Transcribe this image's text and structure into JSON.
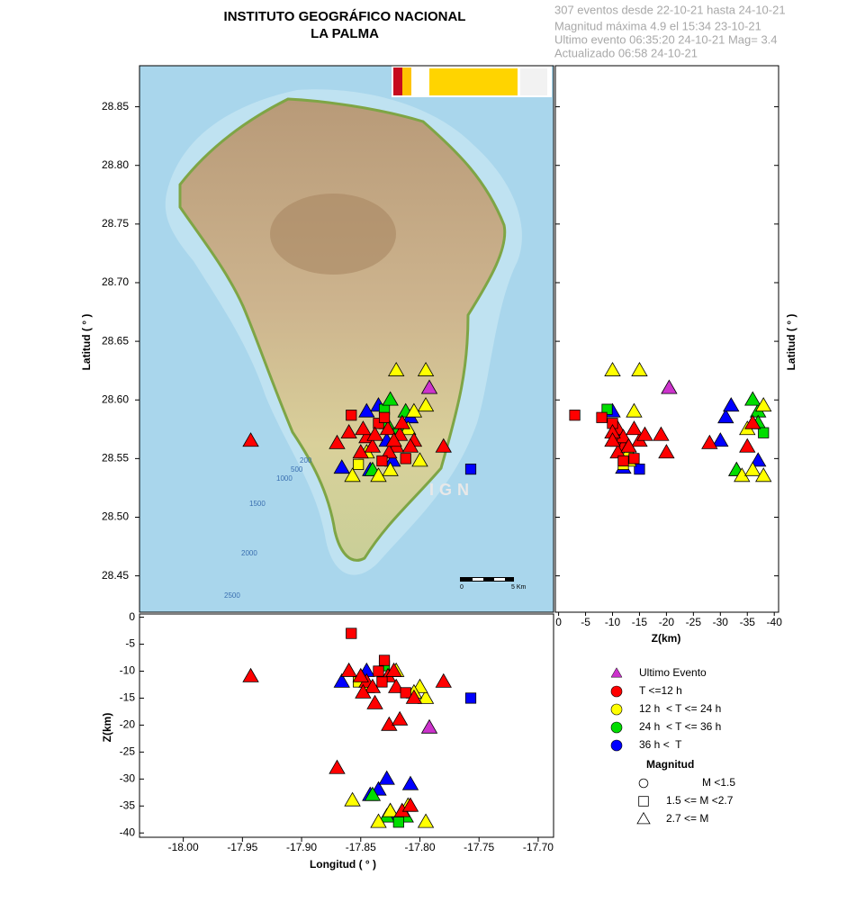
{
  "chart_data": {
    "type": "seismic-map",
    "title": [
      "INSTITUTO GEOGRÁFICO NACIONAL",
      "LA PALMA"
    ],
    "info": [
      "307 eventos desde 22-10-21 hasta 24-10-21",
      "Magnitud máxima 4.9 el 15:34 23-10-21",
      "Ultimo evento  06:35:20 24-10-21  Mag= 3.4",
      "Actualizado  06:58  24-10-21"
    ],
    "xlabel": "Longitud ( ° )",
    "ylabel": "Latitud ( ° )",
    "zlabel": "Z(km)",
    "xlim": [
      -18.037,
      -17.687
    ],
    "ylim": [
      28.419,
      28.885
    ],
    "zlim": [
      0.6,
      -40.8
    ],
    "xticks": [
      {
        "value": -18.0,
        "label": "-18.00"
      },
      {
        "value": -17.95,
        "label": "-17.95"
      },
      {
        "value": -17.9,
        "label": "-17.90"
      },
      {
        "value": -17.85,
        "label": "-17.85"
      },
      {
        "value": -17.8,
        "label": "-17.80"
      },
      {
        "value": -17.75,
        "label": "-17.75"
      },
      {
        "value": -17.7,
        "label": "-17.70"
      }
    ],
    "yticks": [
      28.45,
      {
        "value": 28.5,
        "label": "28.50"
      },
      28.55,
      {
        "value": 28.6,
        "label": "28.60"
      },
      28.65,
      {
        "value": 28.7,
        "label": "28.70"
      },
      28.75,
      {
        "value": 28.8,
        "label": "28.80"
      },
      28.85
    ],
    "zticks": [
      0,
      -5,
      -10,
      -15,
      -20,
      -25,
      -30,
      -35,
      -40
    ],
    "map_labels": {
      "contours": [
        "200",
        "500",
        "1000",
        "1500",
        "2000",
        "2500"
      ],
      "watermark": "IGN",
      "scale": [
        "0",
        "5 Km"
      ]
    },
    "series": [
      {
        "name": "Ultimo Evento",
        "color": "#cc33cc",
        "lon": [
          -17.792
        ],
        "lat": [
          28.61
        ],
        "depth": [
          -20.5
        ],
        "markers": [
          "triangle"
        ]
      },
      {
        "name": "T <=12 h",
        "color": "#ff0000",
        "lon": [
          -17.943,
          -17.858,
          -17.87,
          -17.78,
          -17.827,
          -17.835,
          -17.845,
          -17.82,
          -17.812,
          -17.85,
          -17.83,
          -17.805,
          -17.826,
          -17.817,
          -17.84,
          -17.86,
          -17.815,
          -17.808,
          -17.832,
          -17.848,
          -17.822,
          -17.838
        ],
        "lat": [
          28.565,
          28.587,
          28.563,
          28.56,
          28.575,
          28.58,
          28.568,
          28.56,
          28.55,
          28.555,
          28.585,
          28.565,
          28.555,
          28.57,
          28.56,
          28.572,
          28.58,
          28.56,
          28.548,
          28.575,
          28.565,
          28.57
        ],
        "depth": [
          -11,
          -3,
          -28,
          -12,
          -11,
          -10,
          -12,
          -13,
          -14,
          -11,
          -8,
          -15,
          -20,
          -19,
          -13,
          -10,
          -36,
          -35,
          -12,
          -14,
          -10,
          -16
        ],
        "markers": [
          "triangle",
          "square",
          "triangle",
          "triangle",
          "triangle",
          "square",
          "triangle",
          "triangle",
          "square",
          "triangle",
          "square",
          "triangle",
          "triangle",
          "triangle",
          "triangle",
          "triangle",
          "triangle",
          "triangle",
          "square",
          "triangle",
          "triangle",
          "triangle"
        ]
      },
      {
        "name": "12 h  < T <= 24 h",
        "color": "#ffff00",
        "lon": [
          -17.795,
          -17.82,
          -17.795,
          -17.8,
          -17.857,
          -17.825,
          -17.845,
          -17.81,
          -17.835,
          -17.805,
          -17.852
        ],
        "lat": [
          28.625,
          28.625,
          28.595,
          28.548,
          28.535,
          28.54,
          28.555,
          28.575,
          28.535,
          28.59,
          28.545
        ],
        "depth": [
          -15,
          -10,
          -38,
          -13,
          -34,
          -36,
          -13,
          -35,
          -38,
          -14,
          -12
        ],
        "markers": [
          "triangle",
          "triangle",
          "triangle",
          "triangle",
          "triangle",
          "triangle",
          "triangle",
          "triangle",
          "triangle",
          "triangle",
          "square"
        ]
      },
      {
        "name": "24 h  < T <= 36 h",
        "color": "#00dd00",
        "lon": [
          -17.83,
          -17.812,
          -17.825,
          -17.84,
          -17.828,
          -17.818
        ],
        "lat": [
          28.592,
          28.59,
          28.6,
          28.54,
          28.58,
          28.572
        ],
        "depth": [
          -9,
          -37,
          -36,
          -33,
          -37,
          -38
        ],
        "markers": [
          "square",
          "triangle",
          "triangle",
          "triangle",
          "triangle",
          "square"
        ]
      },
      {
        "name": "36 h <  T",
        "color": "#0000ff",
        "lon": [
          -17.757,
          -17.866,
          -17.808,
          -17.835,
          -17.828,
          -17.842,
          -17.823,
          -17.845
        ],
        "lat": [
          28.541,
          28.542,
          28.585,
          28.595,
          28.565,
          28.54,
          28.548,
          28.59
        ],
        "depth": [
          -15,
          -12,
          -31,
          -32,
          -30,
          -33,
          -37,
          -10
        ],
        "markers": [
          "square",
          "triangle",
          "triangle",
          "triangle",
          "triangle",
          "triangle",
          "triangle",
          "triangle"
        ]
      }
    ],
    "magnitude_legend": {
      "title": "Magnitud",
      "entries": [
        {
          "label": "M <1.5",
          "marker": "circle"
        },
        {
          "label": "1.5 <= M <2.7",
          "marker": "square"
        },
        {
          "label": "2.7 <= M",
          "marker": "triangle"
        }
      ]
    }
  }
}
